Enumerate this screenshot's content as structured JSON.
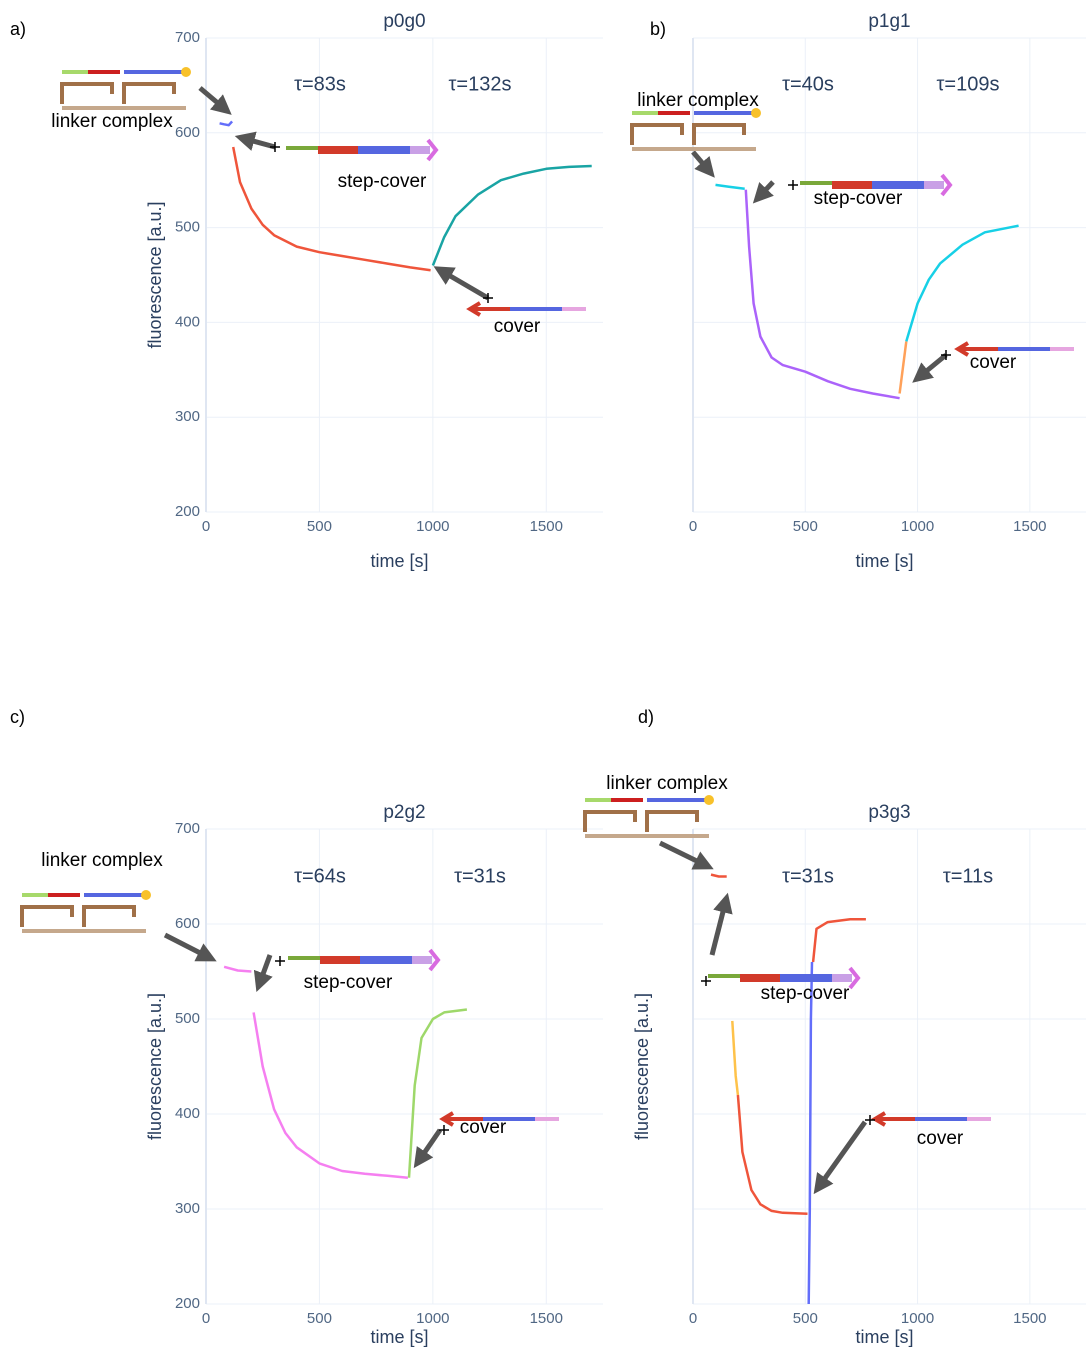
{
  "chart_data": [
    {
      "type": "line",
      "panel_label": "a)",
      "title": "p0g0",
      "x_label": "time [s]",
      "y_label": "fluorescence [a.u.]",
      "xlim": [
        0,
        1750
      ],
      "ylim": [
        200,
        700
      ],
      "xticks": [
        0,
        500,
        1000,
        1500
      ],
      "yticks": [
        200,
        300,
        400,
        500,
        600,
        700
      ],
      "ytick_labels": true,
      "grid": true,
      "annotations": [
        "τ=83s",
        "τ=132s",
        "linker complex",
        "step-cover",
        "cover"
      ],
      "series": [
        {
          "color": "#636efa",
          "x": [
            60,
            80,
            100,
            115
          ],
          "values": [
            610,
            609,
            608,
            612
          ]
        },
        {
          "color": "#ef553b",
          "x": [
            120,
            150,
            200,
            250,
            300,
            400,
            500,
            600,
            700,
            800,
            900,
            990
          ],
          "values": [
            585,
            548,
            520,
            503,
            492,
            480,
            474,
            470,
            466,
            462,
            458,
            455
          ]
        },
        {
          "color": "#19a4a4",
          "x": [
            1000,
            1050,
            1100,
            1200,
            1300,
            1400,
            1500,
            1600,
            1700
          ],
          "values": [
            460,
            490,
            512,
            535,
            550,
            557,
            562,
            564,
            565
          ]
        }
      ]
    },
    {
      "type": "line",
      "panel_label": "b)",
      "title": "p1g1",
      "x_label": "time [s]",
      "xlim": [
        0,
        1750
      ],
      "ylim": [
        200,
        700
      ],
      "xticks": [
        0,
        500,
        1000,
        1500
      ],
      "yticks": [
        200,
        300,
        400,
        500,
        600,
        700
      ],
      "ytick_labels": false,
      "grid": true,
      "annotations": [
        "τ=40s",
        "τ=109s",
        "linker complex",
        "step-cover",
        "cover"
      ],
      "series": [
        {
          "color": "#17d0e6",
          "x": [
            100,
            160,
            230
          ],
          "values": [
            545,
            543,
            541
          ]
        },
        {
          "color": "#ab63fa",
          "x": [
            235,
            250,
            270,
            300,
            350,
            400,
            500,
            600,
            700,
            800,
            920
          ],
          "values": [
            540,
            480,
            420,
            385,
            363,
            355,
            348,
            338,
            330,
            325,
            320
          ]
        },
        {
          "color": "#ffa15a",
          "x": [
            920,
            950
          ],
          "values": [
            325,
            380
          ]
        },
        {
          "color": "#17d0e6",
          "x": [
            950,
            1000,
            1050,
            1100,
            1200,
            1300,
            1450
          ],
          "values": [
            380,
            420,
            445,
            462,
            482,
            495,
            502
          ]
        }
      ]
    },
    {
      "type": "line",
      "panel_label": "c)",
      "title": "p2g2",
      "x_label": "time [s]",
      "y_label": "fluorescence [a.u.]",
      "xlim": [
        0,
        1750
      ],
      "ylim": [
        200,
        700
      ],
      "xticks": [
        0,
        500,
        1000,
        1500
      ],
      "yticks": [
        200,
        300,
        400,
        500,
        600,
        700
      ],
      "ytick_labels": true,
      "grid": true,
      "annotations": [
        "τ=64s",
        "τ=31s",
        "linker complex",
        "step-cover",
        "cover"
      ],
      "series": [
        {
          "color": "#f57ff0",
          "x": [
            80,
            140,
            200
          ],
          "values": [
            555,
            551,
            550
          ]
        },
        {
          "color": "#f57ff0",
          "x": [
            210,
            250,
            300,
            350,
            400,
            500,
            600,
            700,
            800,
            890
          ],
          "values": [
            507,
            450,
            405,
            380,
            365,
            348,
            340,
            337,
            335,
            333
          ]
        },
        {
          "color": "#9ed86a",
          "x": [
            895,
            920,
            950,
            1000,
            1050,
            1150
          ],
          "values": [
            333,
            430,
            480,
            500,
            507,
            510
          ]
        }
      ]
    },
    {
      "type": "line",
      "panel_label": "d)",
      "title": "p3g3",
      "x_label": "time [s]",
      "y_label": "fluorescence [a.u.]",
      "xlim": [
        0,
        1750
      ],
      "ylim": [
        200,
        700
      ],
      "xticks": [
        0,
        500,
        1000,
        1500
      ],
      "yticks": [
        200,
        300,
        400,
        500,
        600,
        700
      ],
      "ytick_labels": false,
      "grid": true,
      "annotations": [
        "τ=31s",
        "τ=11s",
        "linker complex",
        "step-cover",
        "cover"
      ],
      "series": [
        {
          "color": "#ef553b",
          "x": [
            80,
            115,
            150
          ],
          "values": [
            652,
            650,
            650
          ]
        },
        {
          "color": "#fec24a",
          "x": [
            175,
            190,
            200
          ],
          "values": [
            498,
            440,
            420
          ]
        },
        {
          "color": "#ef553b",
          "x": [
            200,
            220,
            260,
            300,
            350,
            400,
            510
          ],
          "values": [
            420,
            360,
            320,
            305,
            298,
            296,
            295
          ]
        },
        {
          "color": "#636efa",
          "x": [
            515,
            520,
            525,
            530
          ],
          "values": [
            200,
            300,
            500,
            560
          ]
        },
        {
          "color": "#ef553b",
          "x": [
            535,
            550,
            600,
            700,
            770
          ],
          "values": [
            560,
            595,
            602,
            605,
            605
          ]
        }
      ]
    }
  ]
}
